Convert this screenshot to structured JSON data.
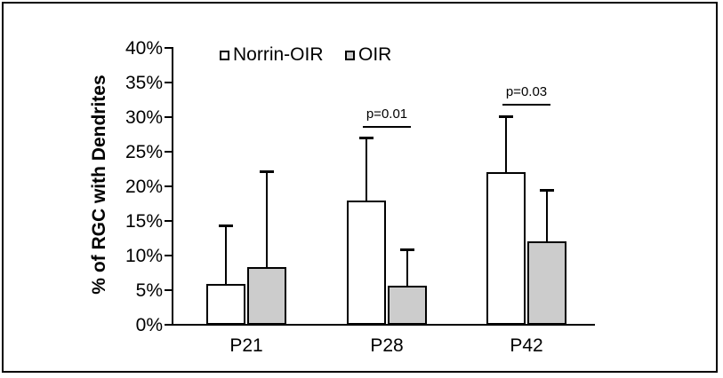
{
  "figure": {
    "background": "#ffffff",
    "border_color": "#000000"
  },
  "chart_data": {
    "type": "bar",
    "title": "",
    "xlabel": "",
    "ylabel": "% of RGC with Dendrites",
    "categories": [
      "P21",
      "P28",
      "P42"
    ],
    "series": [
      {
        "name": "Norrin-OIR",
        "fill": "#ffffff",
        "values": [
          5.9,
          17.9,
          22.1
        ],
        "error_upper": [
          8.3,
          9.0,
          7.9
        ]
      },
      {
        "name": "OIR",
        "fill": "#cccccc",
        "values": [
          8.3,
          5.6,
          12.1
        ],
        "error_upper": [
          13.8,
          5.2,
          7.3
        ]
      }
    ],
    "ylim": [
      0,
      40
    ],
    "ytick_step": 5,
    "ytick_labels": [
      "0%",
      "5%",
      "10%",
      "15%",
      "20%",
      "25%",
      "30%",
      "35%",
      "40%"
    ],
    "grid": false,
    "legend_position": "top-inside",
    "annotations": [
      {
        "text": "p=0.01",
        "category_index": 1,
        "y_percent": 28.6
      },
      {
        "text": "p=0.03",
        "category_index": 2,
        "y_percent": 31.8
      }
    ]
  }
}
